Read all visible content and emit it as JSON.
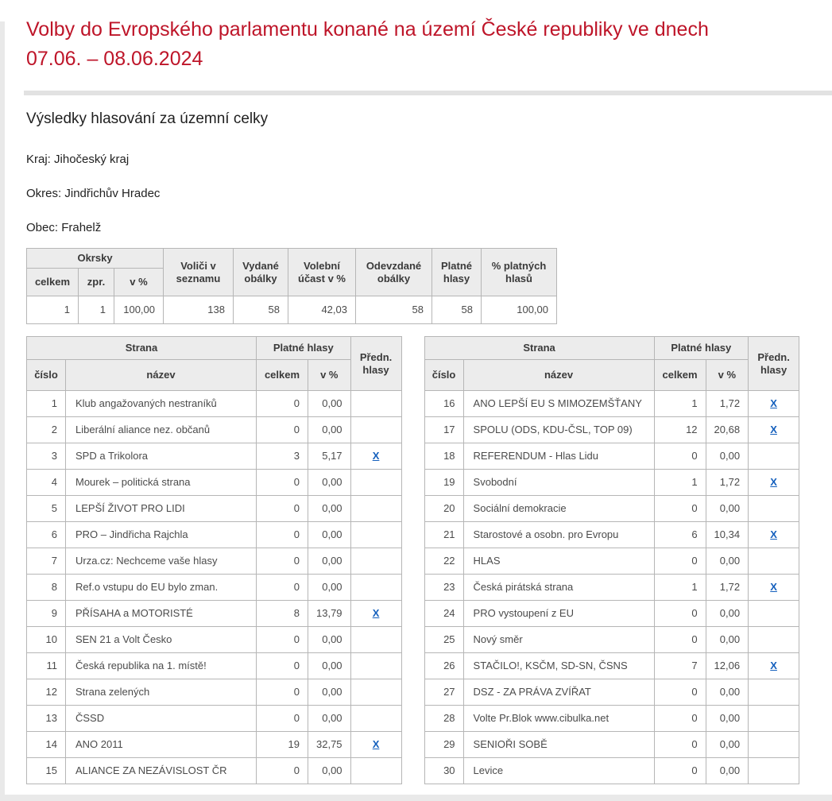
{
  "page": {
    "title_line1": "Volby do Evropského parlamentu konané na území České republiky ve dnech",
    "title_line2": "07.06. – 08.06.2024",
    "subtitle": "Výsledky hlasování za územní celky"
  },
  "location": {
    "kraj": {
      "label": "Kraj:",
      "value": "Jihočeský kraj"
    },
    "okres": {
      "label": "Okres:",
      "value": "Jindřichův Hradec"
    },
    "obec": {
      "label": "Obec:",
      "value": "Frahelž"
    }
  },
  "summary_table": {
    "headers": {
      "okrsky_group": "Okrsky",
      "celkem": "celkem",
      "zpr": "zpr.",
      "v_pct": "v %",
      "volici": "Voliči v seznamu",
      "vydane": "Vydané obálky",
      "ucast": "Volební účast v %",
      "odevzdane": "Odevzdané obálky",
      "platne": "Platné hlasy",
      "pct_platnych": "% platných hlasů"
    },
    "values": [
      "1",
      "1",
      "100,00",
      "138",
      "58",
      "42,03",
      "58",
      "58",
      "100,00"
    ]
  },
  "party_table": {
    "headers": {
      "strana": "Strana",
      "cislo": "číslo",
      "nazev": "název",
      "platne_hlasy": "Platné hlasy",
      "celkem": "celkem",
      "v_pct": "v %",
      "predn_hlasy": "Předn. hlasy"
    },
    "pref_link_label": "X"
  },
  "parties_left": [
    {
      "num": "1",
      "name": "Klub angažovaných nestraníků",
      "votes": "0",
      "pct": "0,00",
      "pref": false
    },
    {
      "num": "2",
      "name": "Liberální aliance nez. občanů",
      "votes": "0",
      "pct": "0,00",
      "pref": false
    },
    {
      "num": "3",
      "name": "SPD a Trikolora",
      "votes": "3",
      "pct": "5,17",
      "pref": true
    },
    {
      "num": "4",
      "name": "Mourek – politická strana",
      "votes": "0",
      "pct": "0,00",
      "pref": false
    },
    {
      "num": "5",
      "name": "LEPŠÍ ŽIVOT PRO LIDI",
      "votes": "0",
      "pct": "0,00",
      "pref": false
    },
    {
      "num": "6",
      "name": "PRO – Jindřicha Rajchla",
      "votes": "0",
      "pct": "0,00",
      "pref": false
    },
    {
      "num": "7",
      "name": "Urza.cz: Nechceme vaše hlasy",
      "votes": "0",
      "pct": "0,00",
      "pref": false
    },
    {
      "num": "8",
      "name": "Ref.o vstupu do EU bylo zman.",
      "votes": "0",
      "pct": "0,00",
      "pref": false
    },
    {
      "num": "9",
      "name": "PŘÍSAHA a MOTORISTÉ",
      "votes": "8",
      "pct": "13,79",
      "pref": true
    },
    {
      "num": "10",
      "name": "SEN 21 a Volt Česko",
      "votes": "0",
      "pct": "0,00",
      "pref": false
    },
    {
      "num": "11",
      "name": "Česká republika na 1. místě!",
      "votes": "0",
      "pct": "0,00",
      "pref": false
    },
    {
      "num": "12",
      "name": "Strana zelených",
      "votes": "0",
      "pct": "0,00",
      "pref": false
    },
    {
      "num": "13",
      "name": "ČSSD",
      "votes": "0",
      "pct": "0,00",
      "pref": false
    },
    {
      "num": "14",
      "name": "ANO 2011",
      "votes": "19",
      "pct": "32,75",
      "pref": true
    },
    {
      "num": "15",
      "name": "ALIANCE ZA NEZÁVISLOST ČR",
      "votes": "0",
      "pct": "0,00",
      "pref": false
    }
  ],
  "parties_right": [
    {
      "num": "16",
      "name": "ANO LEPŠÍ EU S MIMOZEMŠŤANY",
      "votes": "1",
      "pct": "1,72",
      "pref": true
    },
    {
      "num": "17",
      "name": "SPOLU (ODS, KDU-ČSL, TOP 09)",
      "votes": "12",
      "pct": "20,68",
      "pref": true
    },
    {
      "num": "18",
      "name": "REFERENDUM - Hlas Lidu",
      "votes": "0",
      "pct": "0,00",
      "pref": false
    },
    {
      "num": "19",
      "name": "Svobodní",
      "votes": "1",
      "pct": "1,72",
      "pref": true
    },
    {
      "num": "20",
      "name": "Sociální demokracie",
      "votes": "0",
      "pct": "0,00",
      "pref": false
    },
    {
      "num": "21",
      "name": "Starostové a osobn. pro Evropu",
      "votes": "6",
      "pct": "10,34",
      "pref": true
    },
    {
      "num": "22",
      "name": "HLAS",
      "votes": "0",
      "pct": "0,00",
      "pref": false
    },
    {
      "num": "23",
      "name": "Česká pirátská strana",
      "votes": "1",
      "pct": "1,72",
      "pref": true
    },
    {
      "num": "24",
      "name": "PRO vystoupení z EU",
      "votes": "0",
      "pct": "0,00",
      "pref": false
    },
    {
      "num": "25",
      "name": "Nový směr",
      "votes": "0",
      "pct": "0,00",
      "pref": false
    },
    {
      "num": "26",
      "name": "STAČILO!, KSČM, SD-SN, ČSNS",
      "votes": "7",
      "pct": "12,06",
      "pref": true
    },
    {
      "num": "27",
      "name": "DSZ - ZA PRÁVA ZVÍŘAT",
      "votes": "0",
      "pct": "0,00",
      "pref": false
    },
    {
      "num": "28",
      "name": "Volte Pr.Blok www.cibulka.net",
      "votes": "0",
      "pct": "0,00",
      "pref": false
    },
    {
      "num": "29",
      "name": "SENIOŘI SOBĚ",
      "votes": "0",
      "pct": "0,00",
      "pref": false
    },
    {
      "num": "30",
      "name": "Levice",
      "votes": "0",
      "pct": "0,00",
      "pref": false
    }
  ],
  "colors": {
    "title_red": "#be1529",
    "link_blue": "#1560bd",
    "header_bg": "#ececec",
    "border_gray": "#b6b6b6"
  }
}
